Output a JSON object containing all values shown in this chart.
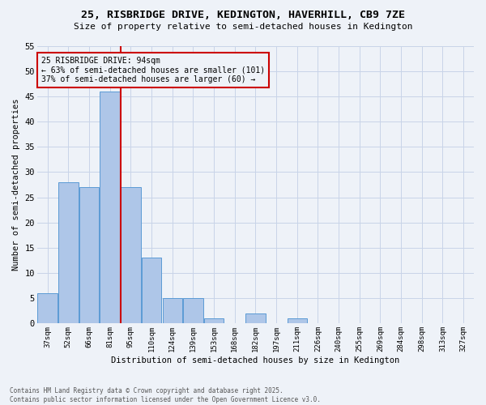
{
  "title_line1": "25, RISBRIDGE DRIVE, KEDINGTON, HAVERHILL, CB9 7ZE",
  "title_line2": "Size of property relative to semi-detached houses in Kedington",
  "bar_labels": [
    "37sqm",
    "52sqm",
    "66sqm",
    "81sqm",
    "95sqm",
    "110sqm",
    "124sqm",
    "139sqm",
    "153sqm",
    "168sqm",
    "182sqm",
    "197sqm",
    "211sqm",
    "226sqm",
    "240sqm",
    "255sqm",
    "269sqm",
    "284sqm",
    "298sqm",
    "313sqm",
    "327sqm"
  ],
  "bar_values": [
    6,
    28,
    27,
    46,
    27,
    13,
    5,
    5,
    1,
    0,
    2,
    0,
    1,
    0,
    0,
    0,
    0,
    0,
    0,
    0,
    0
  ],
  "bar_color": "#aec6e8",
  "bar_edge_color": "#5b9bd5",
  "grid_color": "#c8d4e8",
  "background_color": "#eef2f8",
  "vline_color": "#cc0000",
  "annotation_title": "25 RISBRIDGE DRIVE: 94sqm",
  "annotation_line1": "← 63% of semi-detached houses are smaller (101)",
  "annotation_line2": "37% of semi-detached houses are larger (60) →",
  "annotation_box_color": "#cc0000",
  "ylabel": "Number of semi-detached properties",
  "xlabel": "Distribution of semi-detached houses by size in Kedington",
  "ylim": [
    0,
    55
  ],
  "yticks": [
    0,
    5,
    10,
    15,
    20,
    25,
    30,
    35,
    40,
    45,
    50,
    55
  ],
  "footer_line1": "Contains HM Land Registry data © Crown copyright and database right 2025.",
  "footer_line2": "Contains public sector information licensed under the Open Government Licence v3.0."
}
